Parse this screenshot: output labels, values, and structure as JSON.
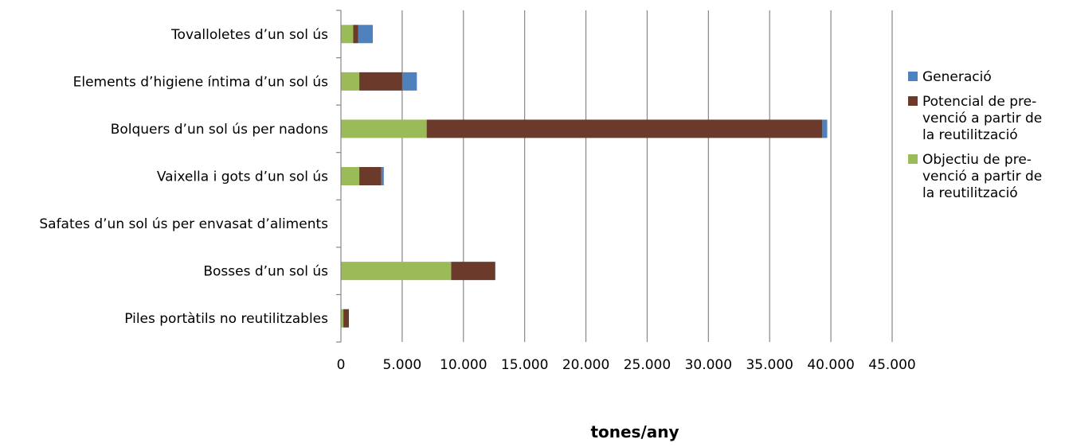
{
  "chart_data": {
    "type": "bar",
    "orientation": "horizontal",
    "stacked": true,
    "categories": [
      "Tovalloletes d’un sol ús",
      "Elements d’higiene íntima d’un sol ús",
      "Bolquers d’un sol ús per nadons",
      "Vaixella i gots d’un sol ús",
      "Safates d’un sol ús per envasat d’aliments",
      "Bosses d’un sol ús",
      "Piles portàtils no reutilitzables"
    ],
    "series": [
      {
        "name": "Objectiu de prevenció a partir de la reutilització",
        "legend_lines": [
          "Objectiu de pre-",
          "venció a partir de",
          "la reutilització"
        ],
        "color": "#9BBB59",
        "values": [
          1000,
          1500,
          7000,
          1500,
          0,
          9000,
          200
        ]
      },
      {
        "name": "Potencial de prevenció a partir de la reutilització",
        "legend_lines": [
          "Potencial de pre-",
          "venció a partir de",
          "la reutilització"
        ],
        "color": "#6B3A2A",
        "values": [
          400,
          3500,
          32300,
          1800,
          0,
          3600,
          450
        ]
      },
      {
        "name": "Generació",
        "legend_lines": [
          "Generació"
        ],
        "color": "#4F81BD",
        "values": [
          1200,
          1200,
          400,
          200,
          0,
          0,
          0
        ]
      }
    ],
    "legend_order": [
      2,
      1,
      0
    ],
    "xlim": [
      0,
      45000
    ],
    "xticks": [
      0,
      5000,
      10000,
      15000,
      20000,
      25000,
      30000,
      35000,
      40000,
      45000
    ],
    "xtick_labels": [
      "0",
      "5.000",
      "10.000",
      "15.000",
      "20.000",
      "25.000",
      "30.000",
      "35.000",
      "40.000",
      "45.000"
    ],
    "xlabel": "tones/any",
    "ylabel": "",
    "title": "",
    "grid": "vertical",
    "grid_color": "#868686",
    "legend_position": "right"
  }
}
